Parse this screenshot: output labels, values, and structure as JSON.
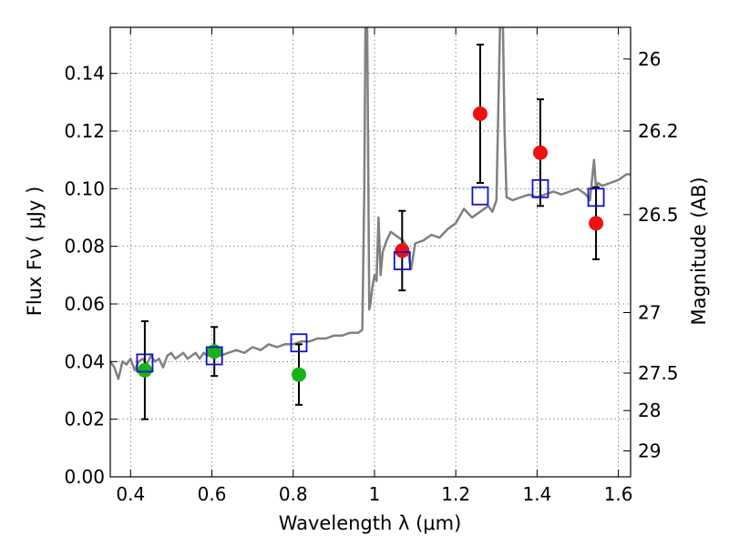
{
  "chart_data": {
    "type": "scatter",
    "xlabel": "Wavelength  λ (μm)",
    "ylabel": "Flux  Fν  ( μJy )",
    "ylabel_right": "Magnitude (AB)",
    "xlim": [
      0.35,
      1.63
    ],
    "ylim": [
      0.0,
      0.156
    ],
    "grid": true,
    "x_ticks": [
      0.4,
      0.6,
      0.8,
      1.0,
      1.2,
      1.4,
      1.6
    ],
    "x_tick_labels": [
      "0.4",
      "0.6",
      "0.8",
      "1",
      "1.2",
      "1.4",
      "1.6"
    ],
    "y_ticks": [
      0.0,
      0.02,
      0.04,
      0.06,
      0.08,
      0.1,
      0.12,
      0.14
    ],
    "y_tick_labels": [
      "0.00",
      "0.02",
      "0.04",
      "0.06",
      "0.08",
      "0.10",
      "0.12",
      "0.14"
    ],
    "right_ticks": [
      {
        "label": "26",
        "flux": 0.145
      },
      {
        "label": "26.2",
        "flux": 0.12
      },
      {
        "label": "26.5",
        "flux": 0.091
      },
      {
        "label": "27",
        "flux": 0.057
      },
      {
        "label": "27.5",
        "flux": 0.036
      },
      {
        "label": "28",
        "flux": 0.023
      },
      {
        "label": "29",
        "flux": 0.009
      }
    ],
    "colors": {
      "model": "#808080",
      "green_points": "#19b319",
      "red_points": "#ee1111",
      "model_photometry": "#1111cc",
      "errorbar": "#000000",
      "grid": "#888888"
    },
    "series": [
      {
        "marker": "circle",
        "color": "#19b319",
        "points": [
          {
            "x": 0.435,
            "y": 0.037,
            "err": 0.017
          },
          {
            "x": 0.606,
            "y": 0.0435,
            "err": 0.0085
          },
          {
            "x": 0.814,
            "y": 0.0355,
            "err": 0.0105
          }
        ]
      },
      {
        "marker": "circle",
        "color": "#ee1111",
        "points": [
          {
            "x": 1.068,
            "y": 0.0785,
            "err": 0.0138
          },
          {
            "x": 1.26,
            "y": 0.126,
            "err": 0.024
          },
          {
            "x": 1.408,
            "y": 0.1125,
            "err": 0.0185
          },
          {
            "x": 1.545,
            "y": 0.088,
            "err": 0.0125
          }
        ]
      },
      {
        "marker": "open-square",
        "color": "#1111cc",
        "points": [
          {
            "x": 0.435,
            "y": 0.0395
          },
          {
            "x": 0.606,
            "y": 0.042
          },
          {
            "x": 0.814,
            "y": 0.0465
          },
          {
            "x": 1.068,
            "y": 0.075
          },
          {
            "x": 1.26,
            "y": 0.0975
          },
          {
            "x": 1.408,
            "y": 0.1
          },
          {
            "x": 1.545,
            "y": 0.097
          }
        ]
      }
    ],
    "model_spectrum": [
      [
        0.35,
        0.04
      ],
      [
        0.36,
        0.038
      ],
      [
        0.37,
        0.034
      ],
      [
        0.38,
        0.04
      ],
      [
        0.39,
        0.039
      ],
      [
        0.4,
        0.041
      ],
      [
        0.41,
        0.037
      ],
      [
        0.42,
        0.04
      ],
      [
        0.43,
        0.041
      ],
      [
        0.44,
        0.039
      ],
      [
        0.45,
        0.042
      ],
      [
        0.46,
        0.04
      ],
      [
        0.47,
        0.041
      ],
      [
        0.48,
        0.038
      ],
      [
        0.49,
        0.042
      ],
      [
        0.5,
        0.043
      ],
      [
        0.51,
        0.041
      ],
      [
        0.52,
        0.042
      ],
      [
        0.53,
        0.043
      ],
      [
        0.54,
        0.041
      ],
      [
        0.55,
        0.042
      ],
      [
        0.56,
        0.043
      ],
      [
        0.57,
        0.041
      ],
      [
        0.58,
        0.043
      ],
      [
        0.59,
        0.042
      ],
      [
        0.6,
        0.043
      ],
      [
        0.62,
        0.042
      ],
      [
        0.64,
        0.043
      ],
      [
        0.66,
        0.044
      ],
      [
        0.68,
        0.043
      ],
      [
        0.7,
        0.045
      ],
      [
        0.72,
        0.044
      ],
      [
        0.74,
        0.046
      ],
      [
        0.76,
        0.045
      ],
      [
        0.78,
        0.046
      ],
      [
        0.8,
        0.046
      ],
      [
        0.82,
        0.047
      ],
      [
        0.84,
        0.047
      ],
      [
        0.86,
        0.048
      ],
      [
        0.88,
        0.048
      ],
      [
        0.9,
        0.049
      ],
      [
        0.92,
        0.049
      ],
      [
        0.94,
        0.05
      ],
      [
        0.96,
        0.05
      ],
      [
        0.97,
        0.051
      ],
      [
        0.975,
        0.1
      ],
      [
        0.978,
        0.16
      ],
      [
        0.982,
        0.16
      ],
      [
        0.985,
        0.1
      ],
      [
        0.987,
        0.058
      ],
      [
        0.99,
        0.06
      ],
      [
        0.995,
        0.066
      ],
      [
        1.0,
        0.07
      ],
      [
        1.005,
        0.068
      ],
      [
        1.01,
        0.09
      ],
      [
        1.015,
        0.07
      ],
      [
        1.02,
        0.078
      ],
      [
        1.03,
        0.082
      ],
      [
        1.04,
        0.085
      ],
      [
        1.05,
        0.084
      ],
      [
        1.06,
        0.083
      ],
      [
        1.07,
        0.082
      ],
      [
        1.08,
        0.08
      ],
      [
        1.09,
        0.072
      ],
      [
        1.1,
        0.081
      ],
      [
        1.12,
        0.082
      ],
      [
        1.14,
        0.084
      ],
      [
        1.16,
        0.083
      ],
      [
        1.18,
        0.086
      ],
      [
        1.2,
        0.088
      ],
      [
        1.22,
        0.093
      ],
      [
        1.24,
        0.09
      ],
      [
        1.26,
        0.092
      ],
      [
        1.28,
        0.094
      ],
      [
        1.29,
        0.092
      ],
      [
        1.3,
        0.096
      ],
      [
        1.305,
        0.13
      ],
      [
        1.31,
        0.165
      ],
      [
        1.315,
        0.165
      ],
      [
        1.32,
        0.12
      ],
      [
        1.325,
        0.097
      ],
      [
        1.34,
        0.096
      ],
      [
        1.36,
        0.097
      ],
      [
        1.38,
        0.098
      ],
      [
        1.4,
        0.097
      ],
      [
        1.42,
        0.098
      ],
      [
        1.44,
        0.099
      ],
      [
        1.46,
        0.098
      ],
      [
        1.48,
        0.099
      ],
      [
        1.5,
        0.1
      ],
      [
        1.52,
        0.098
      ],
      [
        1.53,
        0.096
      ],
      [
        1.54,
        0.11
      ],
      [
        1.545,
        0.1
      ],
      [
        1.55,
        0.102
      ],
      [
        1.56,
        0.101
      ],
      [
        1.58,
        0.102
      ],
      [
        1.6,
        0.103
      ],
      [
        1.62,
        0.105
      ],
      [
        1.63,
        0.105
      ]
    ]
  }
}
